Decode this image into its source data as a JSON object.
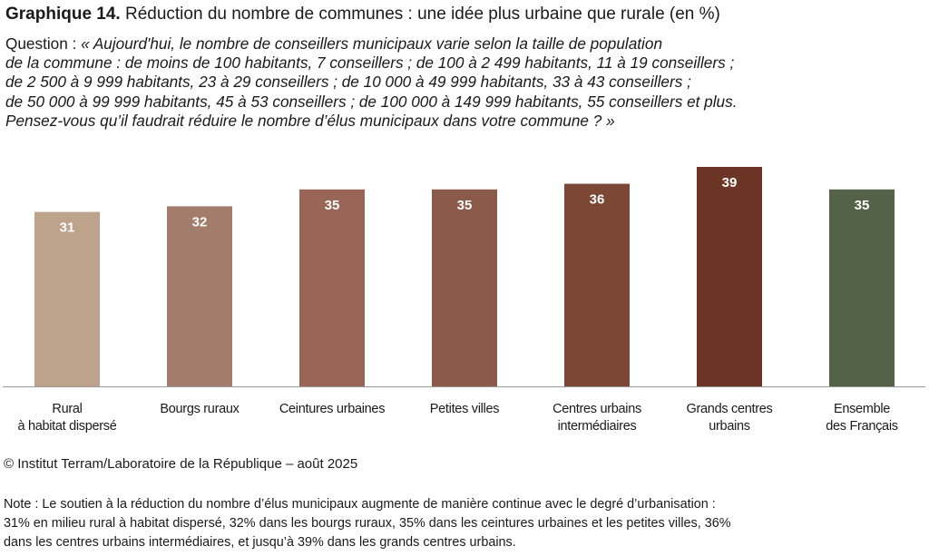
{
  "title": {
    "lead": "Graphique 14.",
    "rest": "Réduction du nombre de communes : une idée plus urbaine que rurale (en %)"
  },
  "question": {
    "label": "Question :",
    "lines": [
      "« Aujourd'hui, le nombre de conseillers municipaux varie selon la taille de population",
      "de la commune : de moins de 100 habitants, 7 conseillers ; de 100 à 2 499 habitants, 11 à 19 conseillers ;",
      "de 2 500 à 9 999 habitants, 23 à 29 conseillers ; de 10 000 à 49 999 habitants, 33 à 43 conseillers ;",
      "de 50 000 à 99 999 habitants, 45 à 53 conseillers ; de 100 000 à 149 999 habitants, 55 conseillers et plus.",
      "Pensez-vous qu’il faudrait réduire le nombre d’élus municipaux dans votre commune ? »"
    ]
  },
  "chart_data": {
    "type": "bar",
    "categories": [
      "Rural\nà habitat dispersé",
      "Bourgs ruraux",
      "Ceintures urbaines",
      "Petites villes",
      "Centres urbains\nintermédiaires",
      "Grands centres\nurbains",
      "Ensemble\ndes Français"
    ],
    "values": [
      31,
      32,
      35,
      35,
      36,
      39,
      35
    ],
    "data_labels": [
      "31",
      "32",
      "35",
      "35",
      "36",
      "39",
      "35"
    ],
    "colors": [
      "#bea38c",
      "#a37c6b",
      "#986556",
      "#8c5a48",
      "#7c4734",
      "#6b3424",
      "#546248"
    ],
    "label_color": "#ffffff",
    "ylim": [
      0,
      39
    ],
    "grid": false,
    "legend": "none",
    "title": "Réduction du nombre de communes : une idée plus urbaine que rurale (en %)",
    "xlabel": "",
    "ylabel": ""
  },
  "source": "© Institut Terram/Laboratoire de la République – août 2025",
  "note": {
    "lines": [
      "Note : Le soutien à la réduction du nombre d’élus municipaux augmente de manière continue avec le degré d’urbanisation :",
      "31% en milieu rural à habitat dispersé, 32% dans les bourgs ruraux, 35% dans les ceintures urbaines et les petites villes, 36%",
      "dans les centres urbains intermédiaires, et jusqu’à 39% dans les grands centres urbains."
    ]
  }
}
